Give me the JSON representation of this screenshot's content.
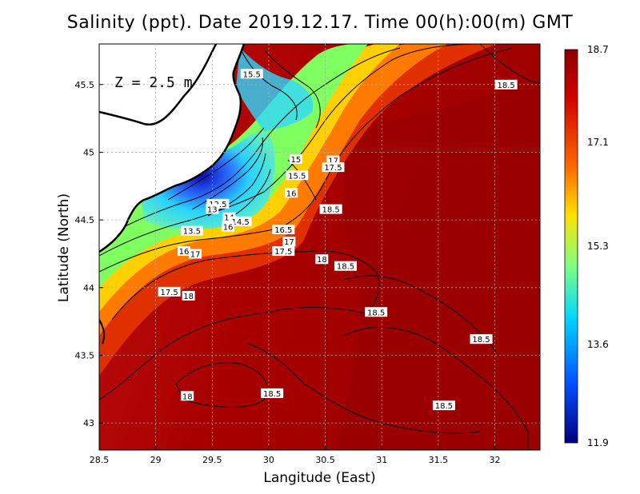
{
  "title": "Salinity (ppt). Date 2019.12.17. Time 00(h):00(m) GMT",
  "depth_label": "Z = 2.5 m",
  "xlabel": "Langitude (East)",
  "ylabel": "Latitude (North)",
  "x_ticks": [
    "28.5",
    "29",
    "29.5",
    "30",
    "30.5",
    "31",
    "31.5",
    "32"
  ],
  "y_ticks": [
    "43",
    "43.5",
    "44",
    "44.5",
    "45",
    "45.5"
  ],
  "colorbar_ticks": [
    "18.7",
    "17.1",
    "15.3",
    "13.6",
    "11.9"
  ],
  "colors": {
    "land": "#ffffff",
    "sea_high": "#9c0000",
    "sea_low": "#1a1aaa",
    "grid": "#aaaaaa",
    "coast": "#000000"
  },
  "map": {
    "lon_range": [
      28.5,
      32.4
    ],
    "lat_range": [
      42.8,
      45.8
    ],
    "grid": true,
    "colorbar_range": [
      11.9,
      18.7
    ],
    "colorbar_placement": "right"
  },
  "contour_labels": [
    {
      "text": "15.5",
      "lon": 29.85,
      "lat": 45.58
    },
    {
      "text": "18.5",
      "lon": 32.1,
      "lat": 45.5
    },
    {
      "text": "15",
      "lon": 30.24,
      "lat": 44.95
    },
    {
      "text": "17",
      "lon": 30.57,
      "lat": 44.94
    },
    {
      "text": "17.5",
      "lon": 30.57,
      "lat": 44.89
    },
    {
      "text": "15.5",
      "lon": 30.25,
      "lat": 44.83
    },
    {
      "text": "16",
      "lon": 30.2,
      "lat": 44.7
    },
    {
      "text": "12.5",
      "lon": 29.55,
      "lat": 44.62
    },
    {
      "text": "13",
      "lon": 29.5,
      "lat": 44.58
    },
    {
      "text": "14",
      "lon": 29.65,
      "lat": 44.52
    },
    {
      "text": "14.5",
      "lon": 29.75,
      "lat": 44.49
    },
    {
      "text": "16",
      "lon": 29.64,
      "lat": 44.45
    },
    {
      "text": "18.5",
      "lon": 30.55,
      "lat": 44.58
    },
    {
      "text": "16.5",
      "lon": 30.13,
      "lat": 44.43
    },
    {
      "text": "13.5",
      "lon": 29.32,
      "lat": 44.42
    },
    {
      "text": "17",
      "lon": 30.18,
      "lat": 44.34
    },
    {
      "text": "16",
      "lon": 29.25,
      "lat": 44.27
    },
    {
      "text": "17",
      "lon": 29.35,
      "lat": 44.25
    },
    {
      "text": "17.5",
      "lon": 30.13,
      "lat": 44.27
    },
    {
      "text": "18",
      "lon": 30.47,
      "lat": 44.21
    },
    {
      "text": "18.5",
      "lon": 30.68,
      "lat": 44.16
    },
    {
      "text": "17.5",
      "lon": 29.12,
      "lat": 43.97
    },
    {
      "text": "18",
      "lon": 29.29,
      "lat": 43.94
    },
    {
      "text": "18.5",
      "lon": 30.95,
      "lat": 43.82
    },
    {
      "text": "18.5",
      "lon": 31.88,
      "lat": 43.62
    },
    {
      "text": "18",
      "lon": 29.28,
      "lat": 43.2
    },
    {
      "text": "18.5",
      "lon": 30.03,
      "lat": 43.22
    },
    {
      "text": "18.5",
      "lon": 31.55,
      "lat": 43.13
    }
  ]
}
